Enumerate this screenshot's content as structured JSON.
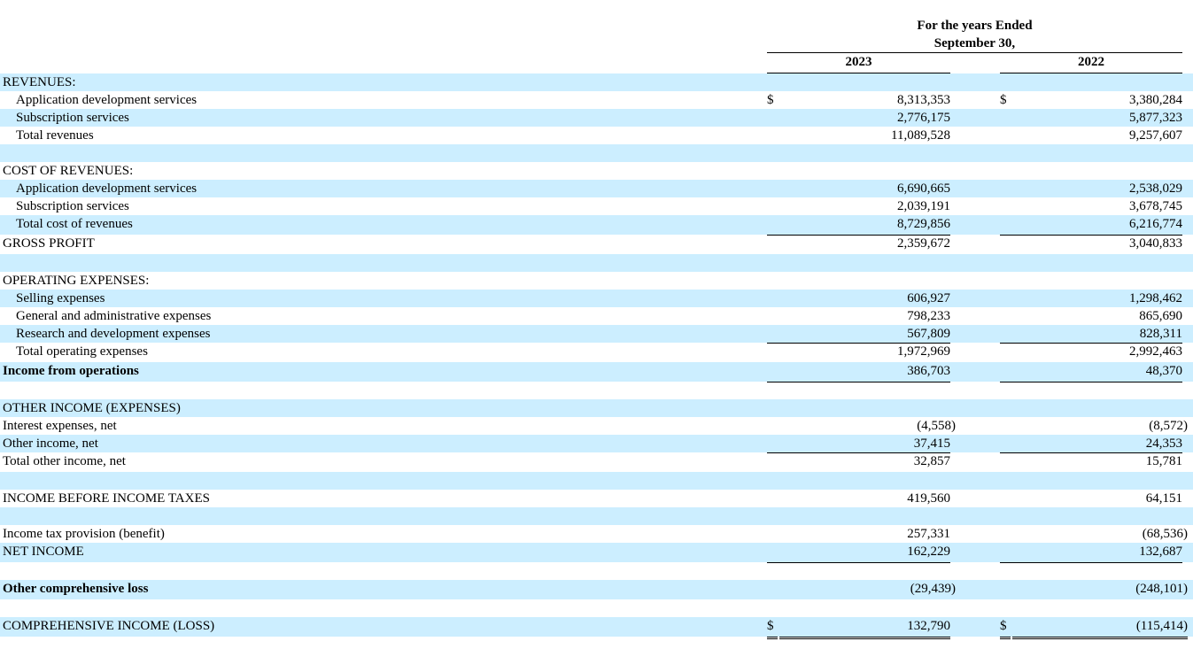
{
  "header": {
    "title_line1": "For the years Ended",
    "title_line2": "September 30,",
    "year_2023": "2023",
    "year_2022": "2022"
  },
  "rows": [
    {
      "label": "REVENUES:",
      "shade": true
    },
    {
      "label": "Application development services",
      "indent": true,
      "dollar": "$",
      "v2023": "8,313,353",
      "v2022": "3,380,284"
    },
    {
      "label": "Subscription services",
      "indent": true,
      "shade": true,
      "v2023": "2,776,175",
      "v2022": "5,877,323"
    },
    {
      "label": "Total revenues",
      "indent": true,
      "v2023": "11,089,528",
      "v2022": "9,257,607"
    },
    {
      "label": "",
      "shade": true
    },
    {
      "label": "COST OF REVENUES:"
    },
    {
      "label": "Application development services",
      "indent": true,
      "shade": true,
      "v2023": "6,690,665",
      "v2022": "2,538,029"
    },
    {
      "label": "Subscription services",
      "indent": true,
      "v2023": "2,039,191",
      "v2022": "3,678,745"
    },
    {
      "label": "Total cost of revenues",
      "indent": true,
      "shade": true,
      "v2023": "8,729,856",
      "v2022": "6,216,774"
    },
    {
      "label": "GROSS PROFIT",
      "v2023": "2,359,672",
      "v2022": "3,040,833"
    },
    {
      "label": "",
      "shade": true
    },
    {
      "label": "OPERATING EXPENSES:"
    },
    {
      "label": "Selling expenses",
      "indent": true,
      "shade": true,
      "v2023": "606,927",
      "v2022": "1,298,462"
    },
    {
      "label": "General and administrative expenses",
      "indent": true,
      "v2023": "798,233",
      "v2022": "865,690"
    },
    {
      "label": "Research and development expenses",
      "indent": true,
      "shade": true,
      "v2023": "567,809",
      "v2022": "828,311"
    },
    {
      "label": "Total operating expenses",
      "indent": true,
      "v2023": "1,972,969",
      "v2022": "2,992,463"
    },
    {
      "label": "Income from operations",
      "bold": true,
      "shade": true,
      "v2023": "386,703",
      "v2022": "48,370"
    },
    {
      "label": ""
    },
    {
      "label": "OTHER INCOME (EXPENSES)",
      "shade": true
    },
    {
      "label": "Interest expenses, net",
      "v2023": "(4,558)",
      "v2022": "(8,572)"
    },
    {
      "label": "Other income, net",
      "shade": true,
      "v2023": "37,415",
      "v2022": "24,353"
    },
    {
      "label": "Total other income, net",
      "v2023": "32,857",
      "v2022": "15,781"
    },
    {
      "label": "",
      "shade": true
    },
    {
      "label": "INCOME BEFORE INCOME TAXES",
      "v2023": "419,560",
      "v2022": "64,151"
    },
    {
      "label": "",
      "shade": true
    },
    {
      "label": "Income tax provision (benefit)",
      "v2023": "257,331",
      "v2022": "(68,536)"
    },
    {
      "label": "NET INCOME",
      "shade": true,
      "v2023": "162,229",
      "v2022": "132,687"
    },
    {
      "label": ""
    },
    {
      "label": "Other comprehensive loss",
      "bold": true,
      "shade": true,
      "v2023": "(29,439)",
      "v2022": "(248,101)"
    },
    {
      "label": ""
    },
    {
      "label": "COMPREHENSIVE INCOME (LOSS)",
      "shade": true,
      "dollar": "$",
      "v2023": "132,790",
      "v2022": "(115,414)"
    }
  ]
}
